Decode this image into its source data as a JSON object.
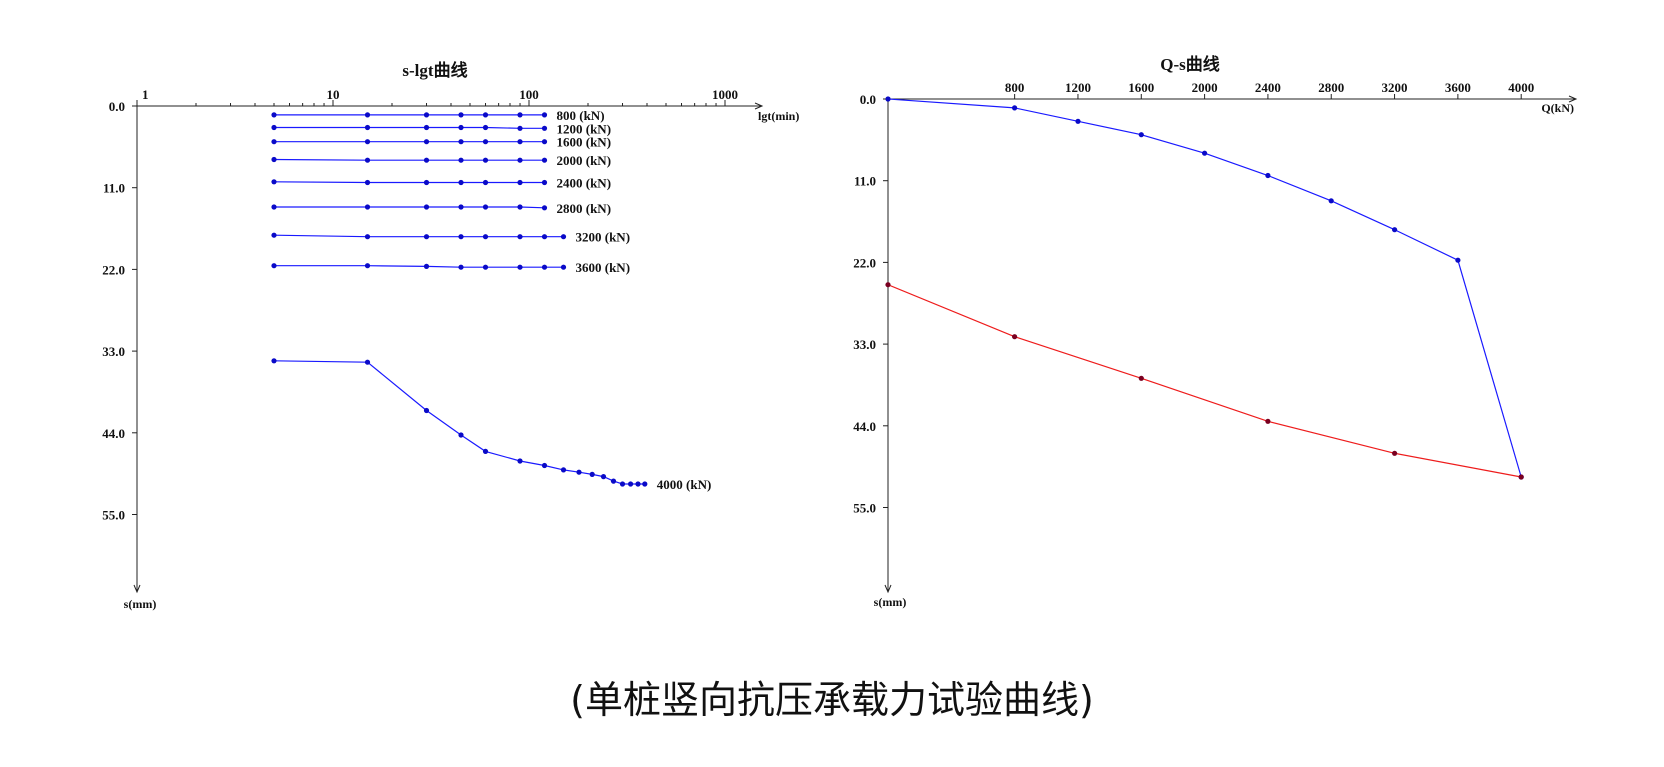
{
  "caption": "(单桩竖向抗压承载力试验曲线)",
  "colors": {
    "blue": "#1a1aff",
    "red": "#ee1c1c",
    "marker_blue": "#0a0ac8",
    "marker_red": "#7a0020",
    "axis": "#222222"
  },
  "chart_data": [
    {
      "type": "line",
      "title": "s-lgt曲线",
      "xlabel": "lgt(min)",
      "ylabel": "s(mm)",
      "xscale": "log",
      "xlim": [
        1,
        1000
      ],
      "xticks": [
        1,
        10,
        100,
        1000
      ],
      "xtick_labels": [
        "1",
        "10",
        "100",
        "1000"
      ],
      "ylim": [
        0,
        66
      ],
      "y_inverted": true,
      "yticks": [
        0,
        11,
        22,
        33,
        44,
        55
      ],
      "ytick_labels": [
        "0.0",
        "11.0",
        "22.0",
        "33.0",
        "44.0",
        "55.0"
      ],
      "series": [
        {
          "name": "800 (kN)",
          "x": [
            5,
            15,
            30,
            45,
            60,
            90,
            120
          ],
          "y": [
            1.2,
            1.2,
            1.2,
            1.2,
            1.2,
            1.2,
            1.2
          ]
        },
        {
          "name": "1200 (kN)",
          "x": [
            5,
            15,
            30,
            45,
            60,
            90,
            120
          ],
          "y": [
            2.9,
            2.9,
            2.9,
            2.9,
            2.9,
            3.0,
            3.0
          ]
        },
        {
          "name": "1600 (kN)",
          "x": [
            5,
            15,
            30,
            45,
            60,
            90,
            120
          ],
          "y": [
            4.8,
            4.8,
            4.8,
            4.8,
            4.8,
            4.8,
            4.8
          ]
        },
        {
          "name": "2000 (kN)",
          "x": [
            5,
            15,
            30,
            45,
            60,
            90,
            120
          ],
          "y": [
            7.2,
            7.3,
            7.3,
            7.3,
            7.3,
            7.3,
            7.3
          ]
        },
        {
          "name": "2400 (kN)",
          "x": [
            5,
            15,
            30,
            45,
            60,
            90,
            120
          ],
          "y": [
            10.2,
            10.3,
            10.3,
            10.3,
            10.3,
            10.3,
            10.3
          ]
        },
        {
          "name": "2800 (kN)",
          "x": [
            5,
            15,
            30,
            45,
            60,
            90,
            120
          ],
          "y": [
            13.6,
            13.6,
            13.6,
            13.6,
            13.6,
            13.6,
            13.7
          ]
        },
        {
          "name": "3200 (kN)",
          "x": [
            5,
            15,
            30,
            45,
            60,
            90,
            120,
            150
          ],
          "y": [
            17.4,
            17.6,
            17.6,
            17.6,
            17.6,
            17.6,
            17.6,
            17.6
          ]
        },
        {
          "name": "3600 (kN)",
          "x": [
            5,
            15,
            30,
            45,
            60,
            90,
            120,
            150
          ],
          "y": [
            21.5,
            21.5,
            21.6,
            21.7,
            21.7,
            21.7,
            21.7,
            21.7
          ]
        },
        {
          "name": "4000 (kN)",
          "x": [
            5,
            15,
            30,
            45,
            60,
            90,
            120,
            150,
            180,
            210,
            240,
            270,
            300,
            330,
            360,
            390
          ],
          "y": [
            34.3,
            34.5,
            41.0,
            44.3,
            46.5,
            47.8,
            48.4,
            49.0,
            49.3,
            49.6,
            49.9,
            50.5,
            50.9,
            50.9,
            50.9,
            50.9
          ]
        }
      ]
    },
    {
      "type": "line",
      "title": "Q-s曲线",
      "xlabel": "Q(kN)",
      "ylabel": "s(mm)",
      "xlim": [
        0,
        4200
      ],
      "xticks": [
        800,
        1200,
        1600,
        2000,
        2400,
        2800,
        3200,
        3600,
        4000
      ],
      "xtick_labels": [
        "800",
        "1200",
        "1600",
        "2000",
        "2400",
        "2800",
        "3200",
        "3600",
        "4000"
      ],
      "ylim": [
        0,
        66
      ],
      "y_inverted": true,
      "yticks": [
        0,
        11,
        22,
        33,
        44,
        55
      ],
      "ytick_labels": [
        "0.0",
        "11.0",
        "22.0",
        "33.0",
        "44.0",
        "55.0"
      ],
      "series": [
        {
          "color": "blue",
          "x": [
            0,
            800,
            1200,
            1600,
            2000,
            2400,
            2800,
            3200,
            3600,
            4000
          ],
          "y": [
            0,
            1.2,
            3.0,
            4.8,
            7.3,
            10.3,
            13.7,
            17.6,
            21.7,
            50.9
          ]
        },
        {
          "color": "red",
          "x": [
            0,
            800,
            1600,
            2400,
            3200,
            4000
          ],
          "y": [
            25.0,
            32.0,
            37.6,
            43.4,
            47.7,
            50.9
          ]
        }
      ]
    }
  ]
}
